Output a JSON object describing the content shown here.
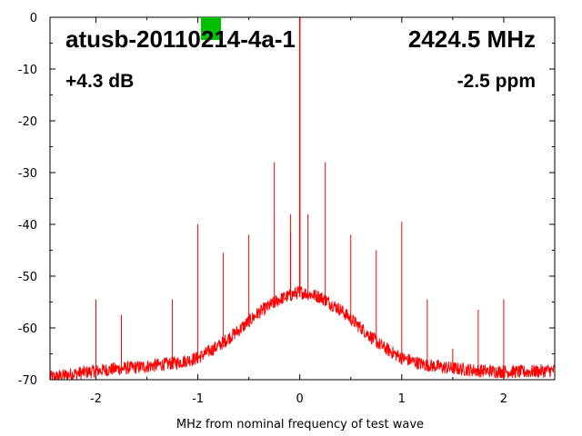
{
  "overlay": {
    "device_id": "atusb-20110214-4a-1",
    "frequency": "2424.5 MHz",
    "gain": "+4.3 dB",
    "ppm": "-2.5 ppm",
    "status_color": "#00c000"
  },
  "chart_data": {
    "type": "line",
    "title": "",
    "xlabel": "MHz from nominal frequency of test wave",
    "ylabel": "",
    "xlim": [
      -2.45,
      2.5
    ],
    "ylim": [
      -70,
      0
    ],
    "xticks": [
      -2,
      -1,
      0,
      1,
      2
    ],
    "yticks": [
      0,
      -10,
      -20,
      -30,
      -40,
      -50,
      -60,
      -70
    ],
    "xtick_labels": [
      "-2",
      "-1",
      "0",
      "1",
      "2"
    ],
    "ytick_labels": [
      "0",
      "-10",
      "-20",
      "-30",
      "-40",
      "-50",
      "-60",
      "-70"
    ],
    "grid": false,
    "series_color": "#ff0000",
    "noise_floor": {
      "x": [
        -2.4,
        -2.2,
        -2.0,
        -1.8,
        -1.6,
        -1.4,
        -1.2,
        -1.0,
        -0.8,
        -0.6,
        -0.4,
        -0.2,
        0.0,
        0.2,
        0.4,
        0.6,
        0.8,
        1.0,
        1.2,
        1.4,
        1.6,
        1.8,
        2.0,
        2.2,
        2.5
      ],
      "y": [
        -69.5,
        -68.8,
        -68.3,
        -67.9,
        -67.6,
        -67.2,
        -66.7,
        -65.8,
        -63.5,
        -60.5,
        -57.0,
        -54.5,
        -53.0,
        -54.0,
        -56.5,
        -60.0,
        -63.5,
        -65.8,
        -67.0,
        -67.6,
        -68.0,
        -68.3,
        -68.4,
        -68.5,
        -68.2
      ]
    },
    "spurs": [
      {
        "x": -2.0,
        "y": -54.5
      },
      {
        "x": -1.75,
        "y": -57.5
      },
      {
        "x": -1.25,
        "y": -54.5
      },
      {
        "x": -1.0,
        "y": -40.0
      },
      {
        "x": -0.75,
        "y": -45.5
      },
      {
        "x": -0.5,
        "y": -42.0
      },
      {
        "x": -0.25,
        "y": -28.0
      },
      {
        "x": -0.09,
        "y": -38.0
      },
      {
        "x": -0.09,
        "y": -41.5
      },
      {
        "x": 0.0,
        "y": 0.0
      },
      {
        "x": 0.08,
        "y": -38.0
      },
      {
        "x": 0.25,
        "y": -28.0
      },
      {
        "x": 0.5,
        "y": -42.0
      },
      {
        "x": 0.75,
        "y": -45.0
      },
      {
        "x": 1.0,
        "y": -39.5
      },
      {
        "x": 1.25,
        "y": -54.5
      },
      {
        "x": 1.5,
        "y": -64.0
      },
      {
        "x": 1.75,
        "y": -56.5
      },
      {
        "x": 2.0,
        "y": -54.5
      }
    ]
  }
}
